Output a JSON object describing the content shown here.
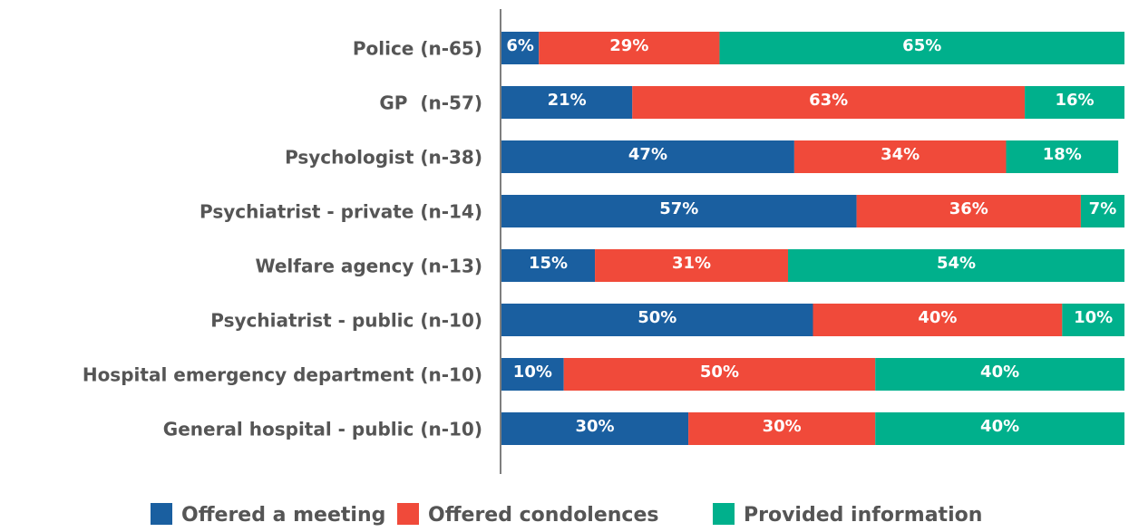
{
  "chart_data": {
    "type": "stacked-barh",
    "categories": [
      "Police (n-65)",
      "GP  (n-57)",
      "Psychologist (n-38)",
      "Psychiatrist - private (n-14)",
      "Welfare agency (n-13)",
      "Psychiatrist - public (n-10)",
      "Hospital emergency department (n-10)",
      "General hospital - public (n-10)"
    ],
    "xlim": [
      0,
      100
    ],
    "series": [
      {
        "name": "Offered a meeting",
        "color": "#1a5fa0",
        "values": [
          6,
          21,
          47,
          57,
          15,
          50,
          10,
          30
        ],
        "value_labels": [
          "6%",
          "21%",
          "47%",
          "57%",
          "15%",
          "50%",
          "10%",
          "30%"
        ]
      },
      {
        "name": "Offered condolences",
        "color": "#f04a3a",
        "values": [
          29,
          63,
          34,
          36,
          31,
          40,
          50,
          30
        ],
        "value_labels": [
          "29%",
          "63%",
          "34%",
          "36%",
          "31%",
          "40%",
          "50%",
          "30%"
        ]
      },
      {
        "name": "Provided information",
        "color": "#00b08c",
        "values": [
          65,
          16,
          18,
          7,
          54,
          10,
          40,
          40
        ],
        "value_labels": [
          "65%",
          "16%",
          "18%",
          "7%",
          "54%",
          "10%",
          "40%",
          "40%"
        ]
      }
    ],
    "legend": "bottom"
  }
}
